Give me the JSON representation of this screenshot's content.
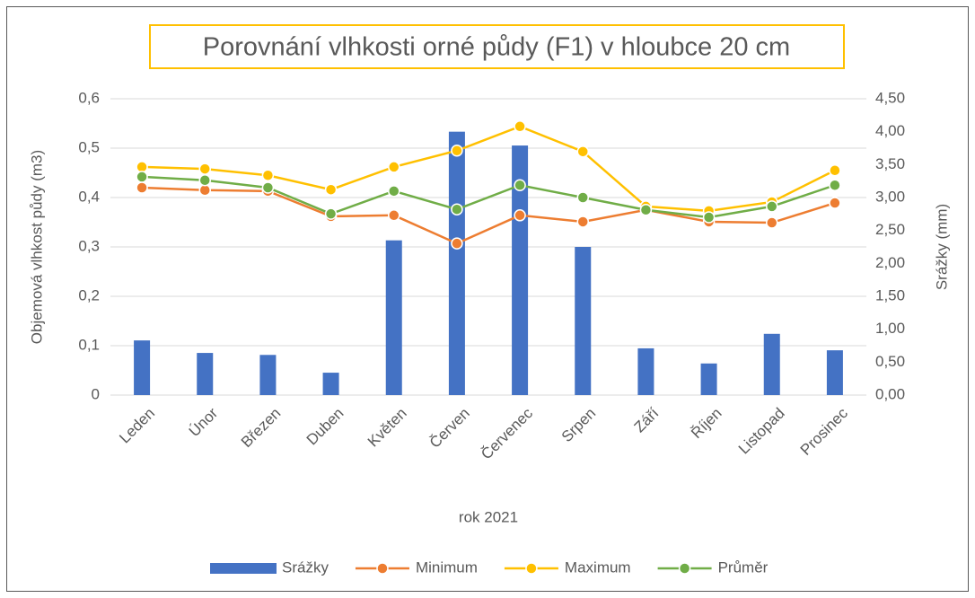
{
  "chart_data": {
    "type": "bar_line",
    "title": "Porovnání vlhkosti orné půdy (F1) v hloubce 20 cm",
    "x_label": "rok 2021",
    "y_label": "Objemová vlhkost půdy (m3)",
    "y2_label": "Srážky (mm)",
    "categories": [
      "Leden",
      "Únor",
      "Březen",
      "Duben",
      "Květen",
      "Červen",
      "Červenec",
      "Srpen",
      "Září",
      "Říjen",
      "Listopad",
      "Prosinec"
    ],
    "ylim": [
      0,
      0.6
    ],
    "yticks": [
      0,
      {
        "value": 0.1,
        "label": "0,1"
      },
      {
        "value": 0.2,
        "label": "0,2"
      },
      {
        "value": 0.3,
        "label": "0,3"
      },
      {
        "value": 0.4,
        "label": "0,4"
      },
      {
        "value": 0.5,
        "label": "0,5"
      },
      {
        "value": 0.6,
        "label": "0,6"
      }
    ],
    "y2lim": [
      0,
      4.5
    ],
    "y2ticks": [
      {
        "value": 0,
        "label": "0,00"
      },
      {
        "value": 0.5,
        "label": "0,50"
      },
      {
        "value": 1,
        "label": "1,00"
      },
      {
        "value": 1.5,
        "label": "1,50"
      },
      {
        "value": 2,
        "label": "2,00"
      },
      {
        "value": 2.5,
        "label": "2,50"
      },
      {
        "value": 3,
        "label": "3,00"
      },
      {
        "value": 3.5,
        "label": "3,50"
      },
      {
        "value": 4,
        "label": "4,00"
      },
      {
        "value": 4.5,
        "label": "4,50"
      }
    ],
    "grid": true,
    "legend": "bottom",
    "series": [
      {
        "name": "Srážky",
        "kind": "bar",
        "axis": "y2",
        "color": "#4472c4",
        "values": [
          0.83,
          0.64,
          0.61,
          0.34,
          2.35,
          4.0,
          3.79,
          2.25,
          0.71,
          0.48,
          0.93,
          0.68
        ]
      },
      {
        "name": "Minimum",
        "kind": "line",
        "color": "#ed7d31",
        "values": [
          0.42,
          0.415,
          0.413,
          0.362,
          0.364,
          0.307,
          0.364,
          0.351,
          0.375,
          0.351,
          0.349,
          0.389
        ]
      },
      {
        "name": "Maximum",
        "kind": "line",
        "color": "#ffc000",
        "values": [
          0.462,
          0.458,
          0.445,
          0.416,
          0.462,
          0.495,
          0.544,
          0.493,
          0.382,
          0.373,
          0.391,
          0.455
        ]
      },
      {
        "name": "Průměr",
        "kind": "line",
        "color": "#70ad47",
        "values": [
          0.442,
          0.435,
          0.42,
          0.367,
          0.413,
          0.376,
          0.425,
          0.4,
          0.375,
          0.36,
          0.382,
          0.425
        ]
      }
    ]
  }
}
